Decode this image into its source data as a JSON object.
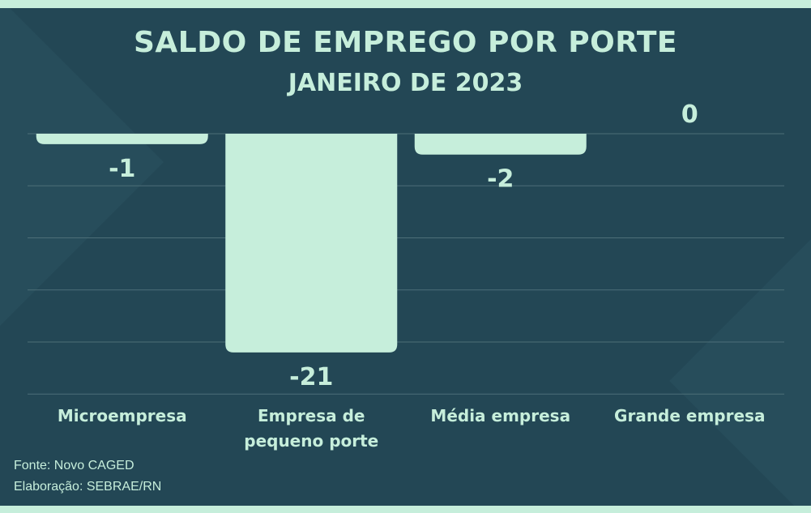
{
  "chart_data": {
    "type": "bar",
    "title": "SALDO DE EMPREGO POR PORTE",
    "subtitle": "JANEIRO DE 2023",
    "categories": [
      [
        "Microempresa"
      ],
      [
        "Empresa de",
        "pequeno porte"
      ],
      [
        "Média empresa"
      ],
      [
        "Grande empresa"
      ]
    ],
    "values": [
      -1,
      -21,
      -2,
      0
    ],
    "value_labels": [
      "-1",
      "-21",
      "-2",
      "0"
    ],
    "ylim": [
      -25,
      0
    ],
    "grid": true,
    "colors": {
      "bar": "#c6eedb",
      "background": "#234755",
      "grid": "#4d6f78",
      "text": "#c6eedb"
    }
  },
  "footer": {
    "source": "Fonte: Novo CAGED",
    "credit": "Elaboração: SEBRAE/RN"
  }
}
